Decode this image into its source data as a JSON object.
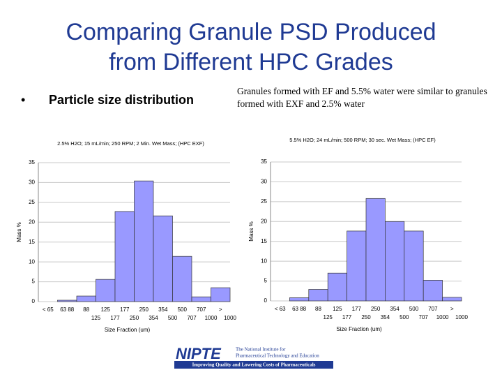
{
  "slide": {
    "title_lines": [
      "Comparing Granule PSD Produced",
      "from Different HPC Grades"
    ],
    "bullet": "Particle size distribution",
    "note": "Granules formed with EF and 5.5% water were similar to granules formed with EXF and 2.5% water",
    "logo": {
      "name": "NIPTE",
      "org_lines": [
        "The National Institute for",
        "Pharmaceutical Technology and Education"
      ],
      "tagline": "Improving Quality and Lowering Costs of Pharmaceuticals"
    }
  },
  "chart_data": [
    {
      "type": "bar",
      "title": "2.5% H2O; 15 mL/min; 250 RPM; 2 Min. Wet Mass; (HPC EXF)",
      "x_label": "Size Fraction (um)",
      "y_label": "Mass %",
      "categories": [
        [
          "< 65"
        ],
        [
          "63 88"
        ],
        [
          "88",
          "125"
        ],
        [
          "125",
          "177"
        ],
        [
          "177",
          "250"
        ],
        [
          "250",
          "354"
        ],
        [
          "354",
          "500"
        ],
        [
          "500",
          "707"
        ],
        [
          "707",
          "1000"
        ],
        [
          ">",
          "1000"
        ]
      ],
      "values": [
        0,
        0.35,
        1.4,
        5.6,
        22.7,
        30.4,
        21.6,
        11.4,
        1.2,
        3.5
      ],
      "color": "#9999ff",
      "ylim": [
        0,
        35
      ],
      "yticks": [
        0,
        5,
        10,
        15,
        20,
        25,
        30,
        35
      ],
      "grid": true
    },
    {
      "type": "bar",
      "title": "5.5% H2O; 24 mL/min; 500 RPM; 30 sec. Wet Mass; (HPC EF)",
      "x_label": "Size Fraction (um)",
      "y_label": "Mass %",
      "categories": [
        [
          "< 63"
        ],
        [
          "63 88"
        ],
        [
          "88",
          "125"
        ],
        [
          "125",
          "177"
        ],
        [
          "177",
          "250"
        ],
        [
          "250",
          "354"
        ],
        [
          "354",
          "500"
        ],
        [
          "500",
          "707"
        ],
        [
          "707",
          "1000"
        ],
        [
          ">",
          "1000"
        ]
      ],
      "values": [
        0,
        0.8,
        2.9,
        7.0,
        17.6,
        25.8,
        20.0,
        17.6,
        5.2,
        0.9
      ],
      "color": "#9999ff",
      "ylim": [
        0,
        35
      ],
      "yticks": [
        0,
        5,
        10,
        15,
        20,
        25,
        30,
        35
      ],
      "grid": true
    }
  ]
}
